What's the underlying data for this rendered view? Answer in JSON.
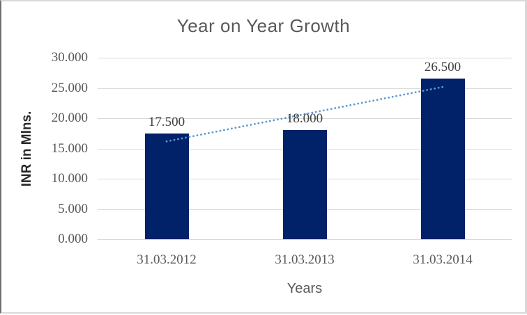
{
  "window": {
    "background": "#ffffff",
    "frame_border_color": "#d9d9d9",
    "frame_left_border_color": "#6f6f6f"
  },
  "chart_data": {
    "type": "bar",
    "title": "Year on Year Growth",
    "xlabel": "Years",
    "ylabel": "INR in Mlns.",
    "categories": [
      "31.03.2012",
      "31.03.2013",
      "31.03.2014"
    ],
    "values": [
      17.5,
      18.0,
      26.5
    ],
    "value_labels": [
      "17.500",
      "18.000",
      "26.500"
    ],
    "yticks": [
      "0.000",
      "5.000",
      "10.000",
      "15.000",
      "20.000",
      "25.000",
      "30.000"
    ],
    "ylim": [
      0,
      30
    ],
    "grid": true,
    "legend": "none",
    "trendline": {
      "type": "linear",
      "style": "dotted"
    },
    "colors": {
      "bar": "#012169",
      "trendline": "#5b9bd5",
      "gridline": "#d9d9d9",
      "title_text": "#595959",
      "tick_text": "#595959",
      "data_label_text": "#404040",
      "axis_title_text": "#262626"
    }
  }
}
